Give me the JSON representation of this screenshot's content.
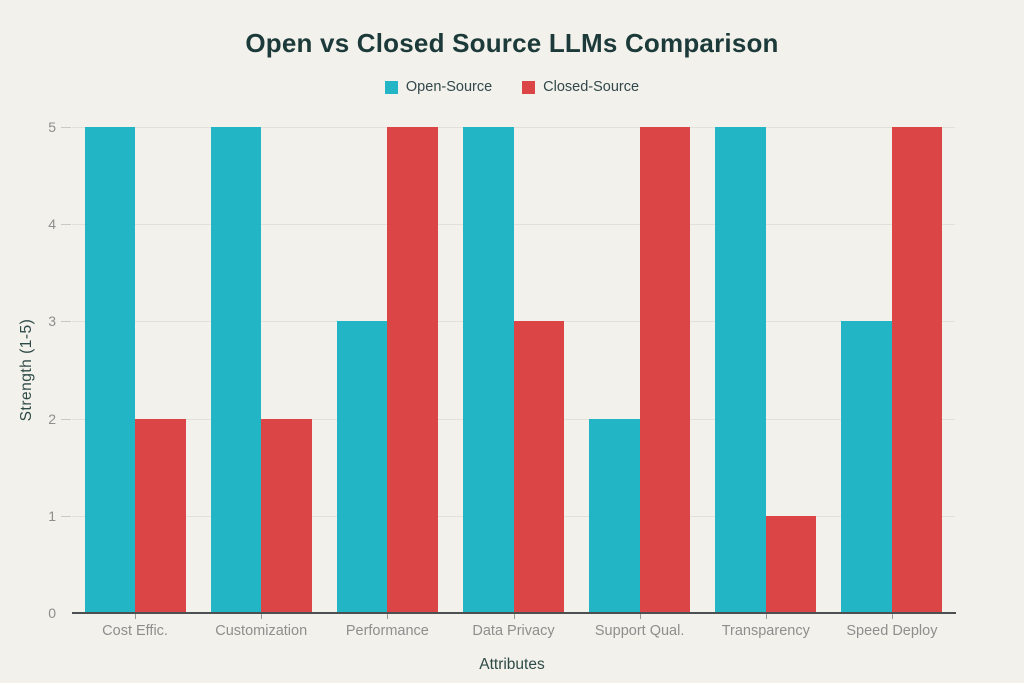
{
  "title": "Open vs Closed Source LLMs Comparison",
  "legend": {
    "items": [
      {
        "label": "Open-Source",
        "color": "#22b5c5"
      },
      {
        "label": "Closed-Source",
        "color": "#dc4545"
      }
    ]
  },
  "axes": {
    "xlabel": "Attributes",
    "ylabel": "Strength (1-5)"
  },
  "chart_data": {
    "type": "bar",
    "title": "Open vs Closed Source LLMs Comparison",
    "categories": [
      "Cost Effic.",
      "Customization",
      "Performance",
      "Data Privacy",
      "Support Qual.",
      "Transparency",
      "Speed Deploy"
    ],
    "series": [
      {
        "name": "Open-Source",
        "color": "#22b5c5",
        "values": [
          5,
          5,
          3,
          5,
          2,
          5,
          3
        ]
      },
      {
        "name": "Closed-Source",
        "color": "#dc4545",
        "values": [
          2,
          2,
          5,
          3,
          5,
          1,
          5
        ]
      }
    ],
    "xlabel": "Attributes",
    "ylabel": "Strength (1-5)",
    "ylim": [
      0,
      5
    ],
    "yticks": [
      0,
      1,
      2,
      3,
      4,
      5
    ],
    "grid": true,
    "legend_position": "top"
  },
  "colors": {
    "background": "#f2f1ec",
    "title_text": "#1c3a39",
    "legend_text": "#32484a",
    "tick_text": "#8e8e8c",
    "axis_title_text": "#2e4a47",
    "axis_line": "#4d5051",
    "gridline": "#e1e0da"
  }
}
